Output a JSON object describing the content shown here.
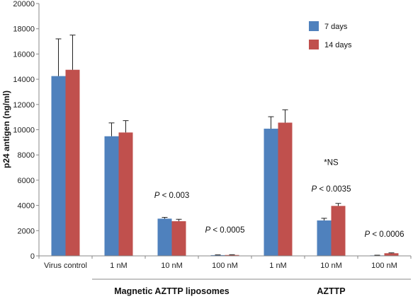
{
  "chart_data": {
    "type": "bar",
    "ylabel": "p24 antigen (ng/ml)",
    "ylim": [
      0,
      20000
    ],
    "yticks": [
      0,
      2000,
      4000,
      6000,
      8000,
      10000,
      12000,
      14000,
      16000,
      18000,
      20000
    ],
    "grid": false,
    "legend_position": "top-right",
    "categories": [
      "Virus control",
      "1 nM",
      "10 nM",
      "100 nM",
      "1 nM",
      "10 nM",
      "100 nM"
    ],
    "series": [
      {
        "name": "7 days",
        "color": "#4f81bd",
        "values": [
          14250,
          9480,
          2950,
          60,
          10080,
          2810,
          40
        ],
        "errors": [
          2950,
          1060,
          100,
          20,
          950,
          170,
          15
        ]
      },
      {
        "name": "14 days",
        "color": "#c0504d",
        "values": [
          14750,
          9780,
          2750,
          70,
          10560,
          3960,
          210
        ],
        "errors": [
          2750,
          940,
          150,
          25,
          1020,
          200,
          30
        ]
      }
    ],
    "annotations": [
      {
        "category_index": 2,
        "prefix": "P",
        "text": " < 0.003",
        "y": 4600
      },
      {
        "category_index": 3,
        "prefix": "P",
        "text": " < 0.0005",
        "y": 1850
      },
      {
        "category_index": 5,
        "prefix": "",
        "text": "*NS",
        "y": 7200
      },
      {
        "category_index": 5,
        "prefix": "P",
        "text": " < 0.0035",
        "y": 5100
      },
      {
        "category_index": 6,
        "prefix": "P",
        "text": " < 0.0006",
        "y": 1500
      }
    ],
    "groups": [
      {
        "label": "Magnetic AZTTP liposomes",
        "from": 1,
        "to": 3
      },
      {
        "label": "AZTTP",
        "from": 4,
        "to": 6
      }
    ]
  }
}
